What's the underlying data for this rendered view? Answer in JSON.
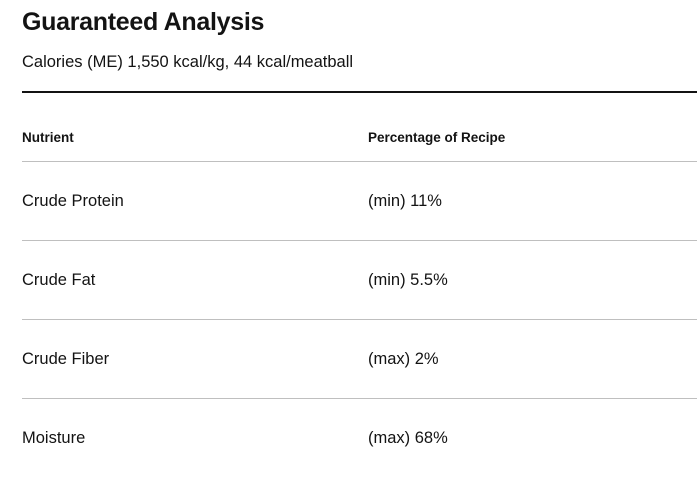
{
  "section": {
    "title": "Guaranteed Analysis",
    "calories_line": "Calories (ME) 1,550 kcal/kg, 44 kcal/meatball"
  },
  "table": {
    "headers": {
      "nutrient": "Nutrient",
      "percentage": "Percentage of Recipe"
    },
    "rows": [
      {
        "nutrient": "Crude Protein",
        "value": "(min) 11%"
      },
      {
        "nutrient": "Crude Fat",
        "value": "(min) 5.5%"
      },
      {
        "nutrient": "Crude Fiber",
        "value": "(max) 2%"
      },
      {
        "nutrient": "Moisture",
        "value": "(max) 68%"
      }
    ]
  },
  "colors": {
    "text": "#131313",
    "heavy_divider": "#131313",
    "row_divider": "#bfbfbf",
    "background": "#ffffff"
  }
}
